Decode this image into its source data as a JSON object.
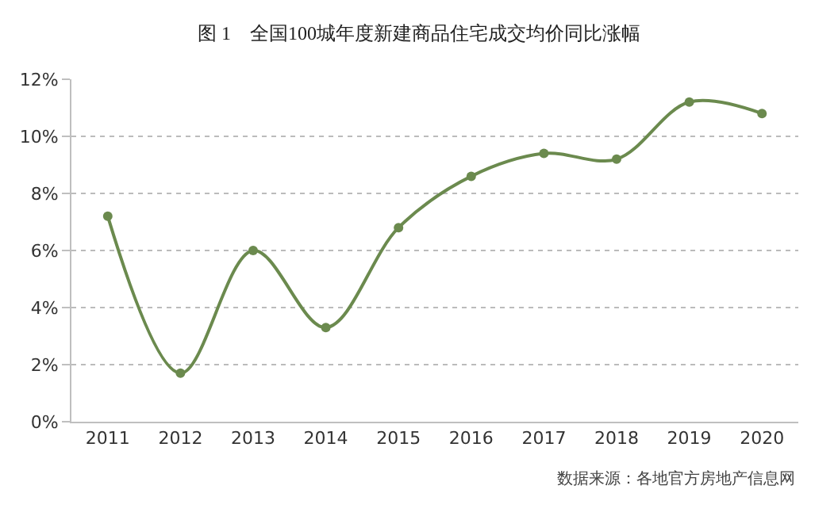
{
  "chart_data": {
    "type": "line",
    "title": "图 1　全国100城年度新建商品住宅成交均价同比涨幅",
    "categories": [
      "2011",
      "2012",
      "2013",
      "2014",
      "2015",
      "2016",
      "2017",
      "2018",
      "2019",
      "2020"
    ],
    "series": [
      {
        "color": "#6b8a4e",
        "values": [
          7.2,
          1.7,
          6.0,
          3.3,
          6.8,
          8.6,
          9.4,
          9.2,
          11.2,
          10.8
        ]
      }
    ],
    "ylim": [
      0,
      12
    ],
    "yticks": [
      {
        "value": 0,
        "label": "0%"
      },
      {
        "value": 2,
        "label": "2%"
      },
      {
        "value": 4,
        "label": "4%"
      },
      {
        "value": 6,
        "label": "6%"
      },
      {
        "value": 8,
        "label": "8%"
      },
      {
        "value": 10,
        "label": "10%"
      },
      {
        "value": 12,
        "label": "12%"
      }
    ],
    "grid": "y",
    "marker": "circle",
    "line_style": "solid",
    "annotations": [
      "数据来源：各地官方房地产信息网"
    ]
  }
}
